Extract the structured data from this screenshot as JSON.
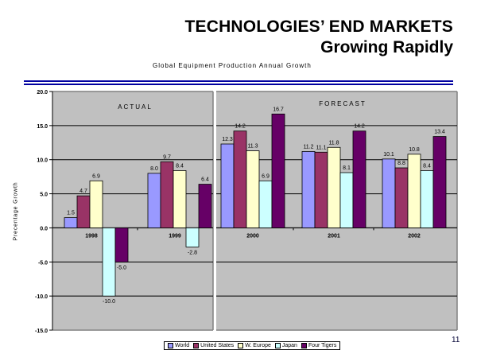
{
  "header": {
    "title_line1": "TECHNOLOGIES’ END MARKETS",
    "title_line2": "Growing Rapidly"
  },
  "page_number": "11",
  "chart_data": {
    "type": "bar",
    "title": "Global Equipment Production Annual Growth",
    "xlabel": "",
    "ylabel": "Precentage Growth",
    "ylim": [
      -15,
      20
    ],
    "yticks": [
      "20.0",
      "15.0",
      "10.0",
      "5.0",
      "0.0",
      "-5.0",
      "-10.0",
      "-15.0"
    ],
    "ytick_values": [
      20,
      15,
      10,
      5,
      0,
      -5,
      -10,
      -15
    ],
    "grid": true,
    "legend_position": "bottom",
    "panels": [
      {
        "label": "ACTUAL",
        "categories": [
          "1998",
          "1999"
        ]
      },
      {
        "label": "FORECAST",
        "categories": [
          "2000",
          "2001",
          "2002"
        ]
      }
    ],
    "categories": [
      "1998",
      "1999",
      "2000",
      "2001",
      "2002"
    ],
    "series": [
      {
        "name": "World",
        "color": "#9999ff",
        "values": [
          1.5,
          8.0,
          12.3,
          11.2,
          10.1
        ],
        "labels": [
          "1.5",
          "8.0",
          "12.3",
          "11.2",
          "10.1"
        ]
      },
      {
        "name": "United States",
        "color": "#993366",
        "values": [
          4.7,
          9.7,
          14.2,
          11.1,
          8.8
        ],
        "labels": [
          "4.7",
          "9.7",
          "14.2",
          "11.1",
          "8.8"
        ]
      },
      {
        "name": "W. Europe",
        "color": "#ffffcc",
        "values": [
          6.9,
          8.4,
          11.3,
          11.8,
          10.8
        ],
        "labels": [
          "6.9",
          "8.4",
          "11.3",
          "11.8",
          "10.8"
        ]
      },
      {
        "name": "Japan",
        "color": "#ccffff",
        "values": [
          -10.0,
          -2.8,
          6.9,
          8.1,
          8.4
        ],
        "labels": [
          "-10.0",
          "-2.8",
          "6.9",
          "8.1",
          "8.4"
        ]
      },
      {
        "name": "Four Tigers",
        "color": "#660066",
        "values": [
          -5.0,
          6.4,
          16.7,
          14.2,
          13.4
        ],
        "labels": [
          "-5.0",
          "6.4",
          "16.7",
          "14.2",
          "13.4"
        ]
      }
    ]
  }
}
